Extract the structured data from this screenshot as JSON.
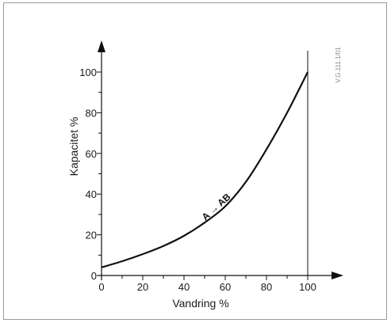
{
  "chart_data": {
    "type": "line",
    "xlabel": "Vandring %",
    "ylabel": "Kapacitet  %",
    "xlim": [
      0,
      100
    ],
    "ylim": [
      0,
      100
    ],
    "x_ticks": [
      "0",
      "20",
      "40",
      "60",
      "80",
      "100"
    ],
    "y_ticks": [
      "0",
      "20",
      "40",
      "60",
      "80",
      "100"
    ],
    "grid": false,
    "series": [
      {
        "name": "A → AB",
        "x": [
          0,
          10,
          20,
          30,
          40,
          50,
          60,
          70,
          80,
          90,
          100
        ],
        "y": [
          4,
          7,
          10.5,
          14.5,
          19.5,
          26,
          34,
          46,
          62,
          80,
          100
        ]
      }
    ],
    "reference_code": "V.G.111.1/01",
    "color": "#111111"
  }
}
